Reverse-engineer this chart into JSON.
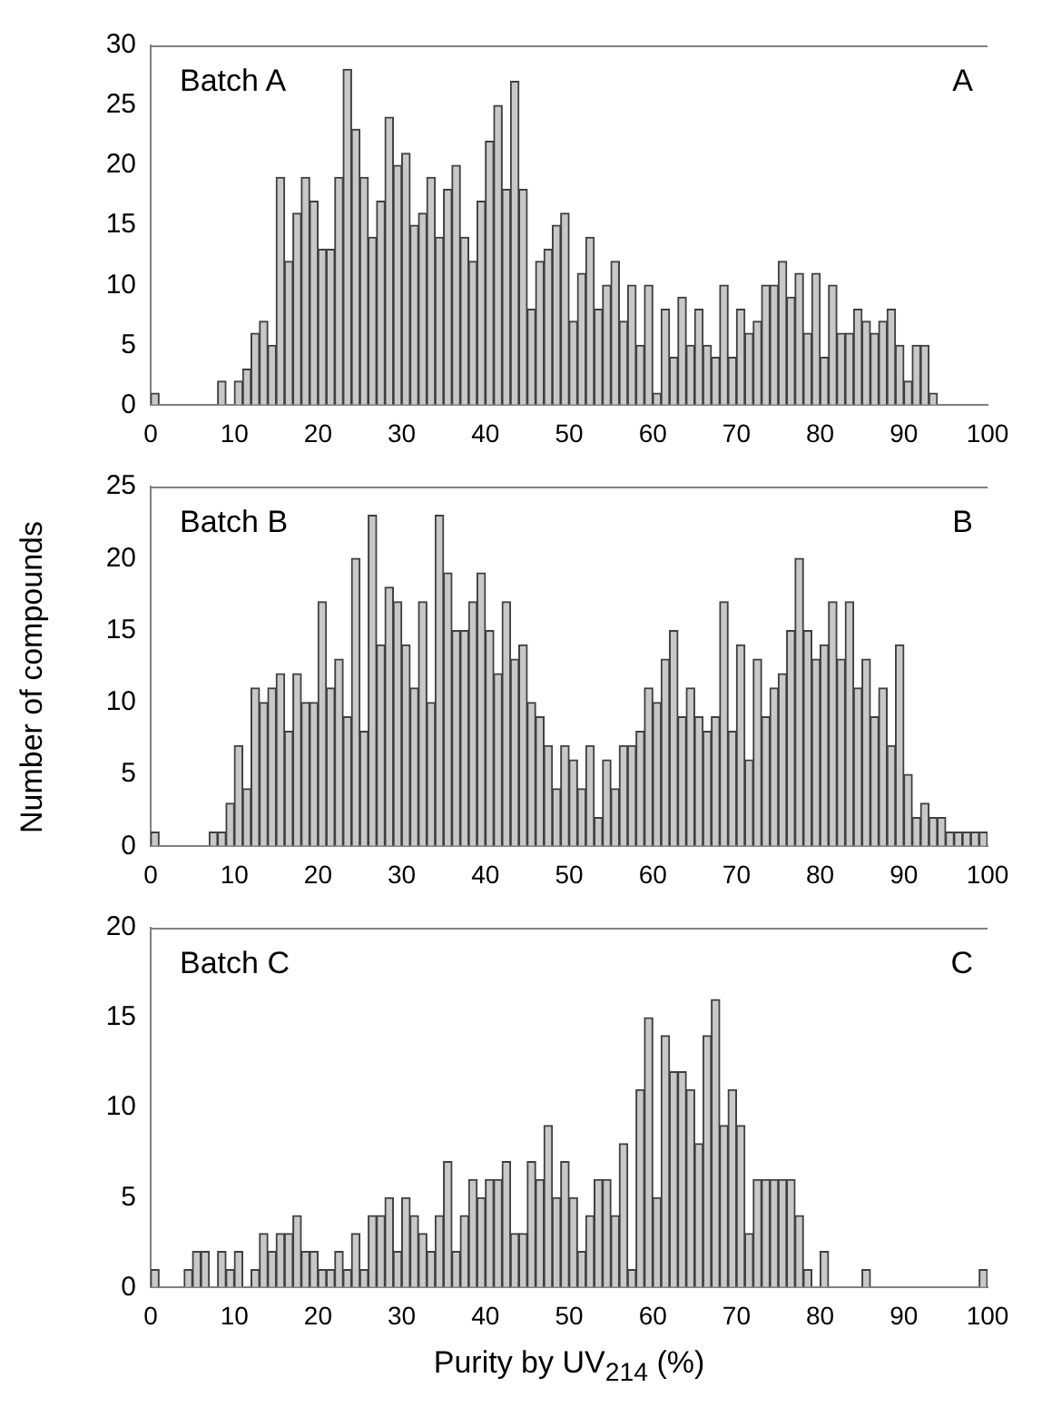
{
  "chart_data": [
    {
      "type": "histogram",
      "annotations": [
        "Batch A",
        "A"
      ],
      "color": "#c8c8c8",
      "bins": [
        0,
        1,
        2,
        3,
        4,
        5,
        6,
        7,
        8,
        9,
        10,
        11,
        12,
        13,
        14,
        15,
        16,
        17,
        18,
        19,
        20,
        21,
        22,
        23,
        24,
        25,
        26,
        27,
        28,
        29,
        30,
        31,
        32,
        33,
        34,
        35,
        36,
        37,
        38,
        39,
        40,
        41,
        42,
        43,
        44,
        45,
        46,
        47,
        48,
        49,
        50,
        51,
        52,
        53,
        54,
        55,
        56,
        57,
        58,
        59,
        60,
        61,
        62,
        63,
        64,
        65,
        66,
        67,
        68,
        69,
        70,
        71,
        72,
        73,
        74,
        75,
        76,
        77,
        78,
        79,
        80,
        81,
        82,
        83,
        84,
        85,
        86,
        87,
        88,
        89,
        90,
        91,
        92,
        93,
        94,
        95,
        96,
        97,
        98,
        99,
        100
      ],
      "values": [
        1,
        0,
        0,
        0,
        0,
        0,
        0,
        0,
        2,
        0,
        2,
        3,
        6,
        7,
        5,
        19,
        12,
        16,
        19,
        17,
        13,
        13,
        19,
        28,
        23,
        19,
        14,
        17,
        24,
        20,
        21,
        15,
        16,
        19,
        14,
        18,
        20,
        14,
        12,
        17,
        22,
        25,
        18,
        27,
        18,
        8,
        12,
        13,
        15,
        16,
        7,
        11,
        14,
        8,
        10,
        12,
        7,
        10,
        5,
        10,
        1,
        8,
        4,
        9,
        5,
        8,
        5,
        4,
        10,
        4,
        8,
        6,
        7,
        10,
        10,
        12,
        9,
        11,
        6,
        11,
        4,
        10,
        6,
        6,
        8,
        7,
        6,
        7,
        8,
        5,
        2,
        5,
        5,
        1,
        0,
        0,
        0,
        0,
        0,
        0
      ],
      "xlim": [
        0,
        100
      ],
      "xticks": [
        0,
        10,
        20,
        30,
        40,
        50,
        60,
        70,
        80,
        90,
        100
      ],
      "ylim": [
        0,
        30
      ],
      "yticks": [
        0,
        5,
        10,
        15,
        20,
        25,
        30
      ],
      "grid": false,
      "legend": false
    },
    {
      "type": "histogram",
      "ylabel": "Number of compounds",
      "annotations": [
        "Batch B",
        "B"
      ],
      "color": "#c8c8c8",
      "bins": [
        0,
        1,
        2,
        3,
        4,
        5,
        6,
        7,
        8,
        9,
        10,
        11,
        12,
        13,
        14,
        15,
        16,
        17,
        18,
        19,
        20,
        21,
        22,
        23,
        24,
        25,
        26,
        27,
        28,
        29,
        30,
        31,
        32,
        33,
        34,
        35,
        36,
        37,
        38,
        39,
        40,
        41,
        42,
        43,
        44,
        45,
        46,
        47,
        48,
        49,
        50,
        51,
        52,
        53,
        54,
        55,
        56,
        57,
        58,
        59,
        60,
        61,
        62,
        63,
        64,
        65,
        66,
        67,
        68,
        69,
        70,
        71,
        72,
        73,
        74,
        75,
        76,
        77,
        78,
        79,
        80,
        81,
        82,
        83,
        84,
        85,
        86,
        87,
        88,
        89,
        90,
        91,
        92,
        93,
        94,
        95,
        96,
        97,
        98,
        99,
        100
      ],
      "values": [
        1,
        0,
        0,
        0,
        0,
        0,
        0,
        1,
        1,
        3,
        7,
        4,
        11,
        10,
        11,
        12,
        8,
        12,
        10,
        10,
        17,
        11,
        13,
        9,
        20,
        8,
        23,
        14,
        18,
        17,
        14,
        11,
        17,
        10,
        23,
        19,
        15,
        15,
        17,
        19,
        15,
        12,
        17,
        13,
        14,
        10,
        9,
        7,
        4,
        7,
        6,
        4,
        7,
        2,
        6,
        4,
        7,
        7,
        8,
        11,
        10,
        13,
        15,
        9,
        11,
        9,
        8,
        9,
        17,
        8,
        14,
        6,
        13,
        9,
        11,
        12,
        15,
        20,
        15,
        13,
        14,
        17,
        13,
        17,
        11,
        13,
        9,
        11,
        7,
        14,
        5,
        2,
        3,
        2,
        2,
        1,
        1,
        1,
        1,
        1
      ],
      "xlim": [
        0,
        100
      ],
      "xticks": [
        0,
        10,
        20,
        30,
        40,
        50,
        60,
        70,
        80,
        90,
        100
      ],
      "ylim": [
        0,
        25
      ],
      "yticks": [
        0,
        5,
        10,
        15,
        20,
        25
      ],
      "grid": false,
      "legend": false
    },
    {
      "type": "histogram",
      "xlabel": "Purity by UV$_{214}$ (%)",
      "annotations": [
        "Batch C",
        "C"
      ],
      "color": "#c8c8c8",
      "bins": [
        0,
        1,
        2,
        3,
        4,
        5,
        6,
        7,
        8,
        9,
        10,
        11,
        12,
        13,
        14,
        15,
        16,
        17,
        18,
        19,
        20,
        21,
        22,
        23,
        24,
        25,
        26,
        27,
        28,
        29,
        30,
        31,
        32,
        33,
        34,
        35,
        36,
        37,
        38,
        39,
        40,
        41,
        42,
        43,
        44,
        45,
        46,
        47,
        48,
        49,
        50,
        51,
        52,
        53,
        54,
        55,
        56,
        57,
        58,
        59,
        60,
        61,
        62,
        63,
        64,
        65,
        66,
        67,
        68,
        69,
        70,
        71,
        72,
        73,
        74,
        75,
        76,
        77,
        78,
        79,
        80,
        81,
        82,
        83,
        84,
        85,
        86,
        87,
        88,
        89,
        90,
        91,
        92,
        93,
        94,
        95,
        96,
        97,
        98,
        99,
        100
      ],
      "values": [
        1,
        0,
        0,
        0,
        1,
        2,
        2,
        0,
        2,
        1,
        2,
        0,
        1,
        3,
        2,
        3,
        3,
        4,
        2,
        2,
        1,
        1,
        2,
        1,
        3,
        1,
        4,
        4,
        5,
        2,
        5,
        4,
        3,
        2,
        4,
        7,
        2,
        4,
        6,
        5,
        6,
        6,
        7,
        3,
        3,
        7,
        6,
        9,
        5,
        7,
        5,
        2,
        4,
        6,
        6,
        4,
        8,
        1,
        11,
        15,
        5,
        14,
        12,
        12,
        11,
        8,
        14,
        16,
        9,
        11,
        9,
        3,
        6,
        6,
        6,
        6,
        6,
        4,
        1,
        0,
        2,
        0,
        0,
        0,
        0,
        1,
        0,
        0,
        0,
        0,
        0,
        0,
        0,
        0,
        0,
        0,
        0,
        0,
        0,
        1
      ],
      "xlim": [
        0,
        100
      ],
      "xticks": [
        0,
        10,
        20,
        30,
        40,
        50,
        60,
        70,
        80,
        90,
        100
      ],
      "ylim": [
        0,
        20
      ],
      "yticks": [
        0,
        5,
        10,
        15,
        20
      ],
      "grid": false,
      "legend": false
    }
  ]
}
